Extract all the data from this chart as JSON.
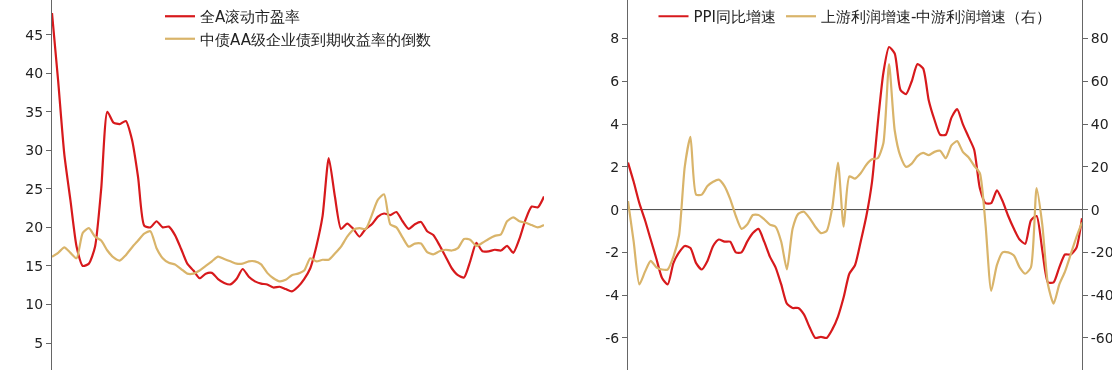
{
  "chart_data": [
    {
      "type": "line",
      "categories": [
        null,
        null,
        null,
        null,
        null,
        null,
        null,
        null,
        null,
        null,
        null,
        null,
        null,
        null,
        null,
        null,
        null,
        null,
        null,
        null,
        null,
        null,
        null,
        null,
        null,
        null,
        null,
        null,
        null,
        null,
        null,
        null,
        null,
        null,
        null,
        null,
        null,
        null,
        null,
        null,
        null,
        null,
        null,
        null,
        null,
        null,
        null,
        null,
        null,
        null,
        null,
        null,
        null,
        null,
        null,
        null,
        null,
        null,
        null,
        null,
        null,
        null,
        null,
        null,
        null,
        null,
        null,
        null,
        null,
        null,
        null,
        null,
        null,
        null,
        null,
        null,
        null,
        null,
        null,
        null,
        null
      ],
      "series": [
        {
          "name": "全A滚动市盈率",
          "color": "#d7191c",
          "values": [
            47.8,
            39,
            29.5,
            23.5,
            17.5,
            15,
            15.3,
            17.5,
            25,
            35,
            33.6,
            33.4,
            33.8,
            31.4,
            26.5,
            20.2,
            20,
            20.8,
            20,
            20.1,
            19,
            17.2,
            15.3,
            14.4,
            13.4,
            14,
            14.1,
            13.3,
            12.8,
            12.6,
            13.3,
            14.6,
            13.6,
            13,
            12.7,
            12.6,
            12.2,
            12.3,
            12,
            11.7,
            12.3,
            13.3,
            14.7,
            17.6,
            21.5,
            29,
            24,
            19.8,
            20.5,
            19.8,
            18.8,
            19.8,
            20.4,
            21.4,
            21.8,
            21.6,
            22,
            20.8,
            19.8,
            20.4,
            20.7,
            19.5,
            19,
            17.7,
            16.2,
            14.7,
            13.8,
            13.5,
            15.6,
            18,
            16.9,
            16.9,
            17.1,
            17,
            17.6,
            16.7,
            18.5,
            21,
            22.7,
            22.6,
            24
          ]
        },
        {
          "name": "中债AA级企业债到期收益率的倒数",
          "color": "#d9b46a",
          "values": [
            16.2,
            16.7,
            17.4,
            16.7,
            16,
            19.3,
            19.9,
            18.8,
            18.3,
            17,
            16.1,
            15.7,
            16.4,
            17.4,
            18.3,
            19.2,
            19.5,
            17.3,
            16,
            15.4,
            15.2,
            14.6,
            14,
            14,
            14.4,
            15,
            15.6,
            16.2,
            15.9,
            15.6,
            15.3,
            15.3,
            15.6,
            15.6,
            15.2,
            14.1,
            13.4,
            13,
            13.2,
            13.8,
            14,
            14.4,
            16,
            15.6,
            15.8,
            15.8,
            16.6,
            17.5,
            18.8,
            19.7,
            19.9,
            19.8,
            21.6,
            23.6,
            24.3,
            20.4,
            20,
            18.7,
            17.5,
            17.9,
            17.9,
            16.8,
            16.5,
            16.9,
            17.1,
            17,
            17.3,
            18.5,
            18.4,
            17.6,
            18,
            18.5,
            18.9,
            19.1,
            20.8,
            21.3,
            20.8,
            20.6,
            20.3,
            20,
            20.3
          ]
        }
      ],
      "ylim": [
        1.5,
        49.5
      ],
      "yticks": [
        5,
        10,
        15,
        20,
        25,
        30,
        35,
        40,
        45
      ],
      "tick_labels": "y",
      "grid": false,
      "legend": "top",
      "marker": "none",
      "line_style": "solid"
    },
    {
      "type": "line",
      "categories": [
        null,
        null,
        null,
        null,
        null,
        null,
        null,
        null,
        null,
        null,
        null,
        null,
        null,
        null,
        null,
        null,
        null,
        null,
        null,
        null,
        null,
        null,
        null,
        null,
        null,
        null,
        null,
        null,
        null,
        null,
        null,
        null,
        null,
        null,
        null,
        null,
        null,
        null,
        null,
        null,
        null,
        null,
        null,
        null,
        null,
        null,
        null,
        null,
        null,
        null,
        null,
        null,
        null,
        null,
        null,
        null,
        null,
        null,
        null,
        null,
        null,
        null,
        null,
        null,
        null,
        null,
        null,
        null,
        null,
        null,
        null,
        null,
        null,
        null,
        null,
        null,
        null,
        null,
        null,
        null,
        null
      ],
      "series": [
        {
          "name": "PPI同比增速",
          "color": "#d7191c",
          "values": [
            2.2,
            1.3,
            0.3,
            -0.5,
            -1.4,
            -2.3,
            -3.2,
            -3.5,
            -2.5,
            -2,
            -1.7,
            -1.8,
            -2.5,
            -2.8,
            -2.4,
            -1.7,
            -1.4,
            -1.5,
            -1.5,
            -2,
            -2,
            -1.5,
            -1.1,
            -0.9,
            -1.5,
            -2.2,
            -2.7,
            -3.5,
            -4.4,
            -4.6,
            -4.6,
            -4.9,
            -5.5,
            -6,
            -5.95,
            -6,
            -5.6,
            -5,
            -4.1,
            -3,
            -2.6,
            -1.5,
            -0.3,
            1.3,
            4,
            6.4,
            7.6,
            7.3,
            5.6,
            5.4,
            6,
            6.8,
            6.6,
            5.1,
            4.2,
            3.5,
            3.5,
            4.3,
            4.7,
            4,
            3.4,
            2.8,
            1,
            0.3,
            0.3,
            0.9,
            0.4,
            -0.3,
            -0.9,
            -1.4,
            -1.6,
            -0.5,
            -0.3,
            -1.9,
            -3.4,
            -3.4,
            -2.7,
            -2.1,
            -2.1,
            -1.8,
            -0.4
          ]
        },
        {
          "name": "上游利润增速-中游利润增速（右）",
          "color": "#d9b46a",
          "axis": "y2",
          "values": [
            4,
            -15,
            -35,
            -29,
            -24,
            -27,
            -28,
            -28,
            -22,
            -12,
            20,
            34,
            7,
            7,
            11,
            13,
            14,
            11,
            5,
            -3,
            -9,
            -7,
            -2.5,
            -2.5,
            -4.5,
            -7,
            -8,
            -15,
            -28,
            -9,
            -2,
            -1,
            -4,
            -8,
            -11,
            -10,
            1,
            22,
            -8,
            15.5,
            14.5,
            17,
            21,
            23.5,
            24,
            31,
            68,
            37,
            25,
            20,
            21.5,
            25,
            26.5,
            25.5,
            27,
            27.5,
            24,
            30,
            32,
            27,
            24.5,
            20.5,
            17,
            -7,
            -38,
            -26,
            -20,
            -20,
            -21.5,
            -27,
            -30,
            -27,
            10,
            -7,
            -35,
            -44,
            -35,
            -29,
            -21,
            -13,
            -6
          ]
        }
      ],
      "ylim": [
        -7.5,
        9.8
      ],
      "yticks": [
        -6,
        -4,
        -2,
        0,
        2,
        4,
        6,
        8
      ],
      "y2lim": [
        -75,
        98
      ],
      "y2ticks": [
        -60,
        -40,
        -20,
        0,
        20,
        40,
        60,
        80
      ],
      "ref_lines": [
        {
          "axis": "y",
          "value": 0,
          "color": "#444444"
        }
      ],
      "tick_labels": "y",
      "grid": false,
      "legend": "top",
      "marker": "none",
      "line_style": "solid"
    }
  ]
}
